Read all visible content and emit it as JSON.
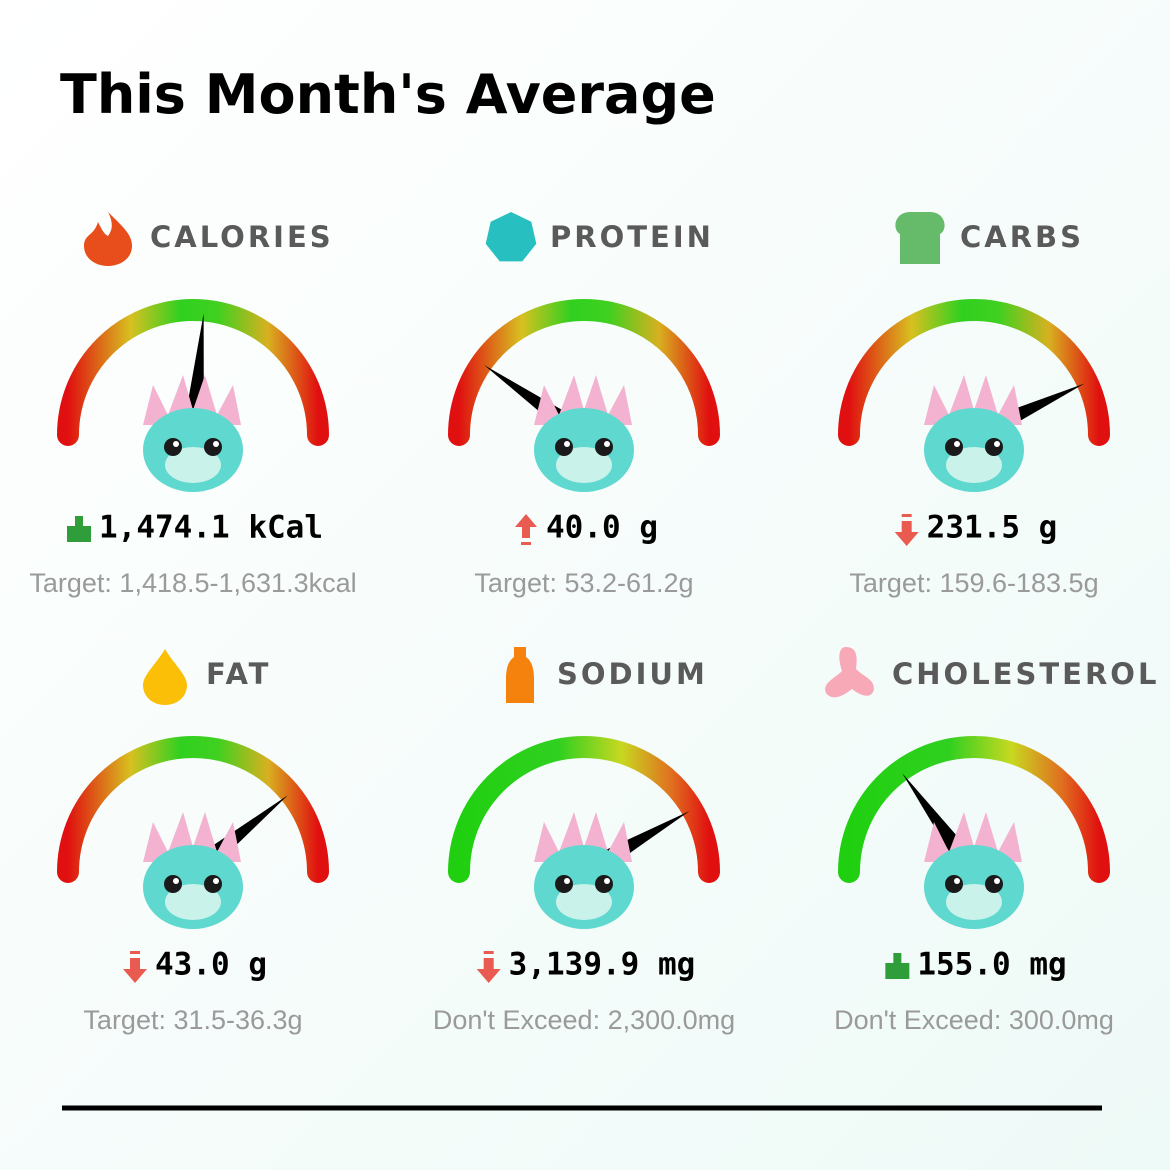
{
  "title": "This Month's Average",
  "metrics": [
    {
      "label": "CALORIES",
      "value": "1,474.1 kCal",
      "target": "Target: 1,418.5-1,631.3kcal"
    },
    {
      "label": "PROTEIN",
      "value": "40.0 g",
      "target": "Target: 53.2-61.2g"
    },
    {
      "label": "CARBS",
      "value": "231.5 g",
      "target": "Target: 159.6-183.5g"
    },
    {
      "label": "FAT",
      "value": "43.0 g",
      "target": "Target: 31.5-36.3g"
    },
    {
      "label": "SODIUM",
      "value": "3,139.9 mg",
      "target": "Don't Exceed: 2,300.0mg"
    },
    {
      "label": "CHOLESTEROL",
      "value": "155.0 mg",
      "target": "Don't Exceed: 300.0mg"
    }
  ]
}
